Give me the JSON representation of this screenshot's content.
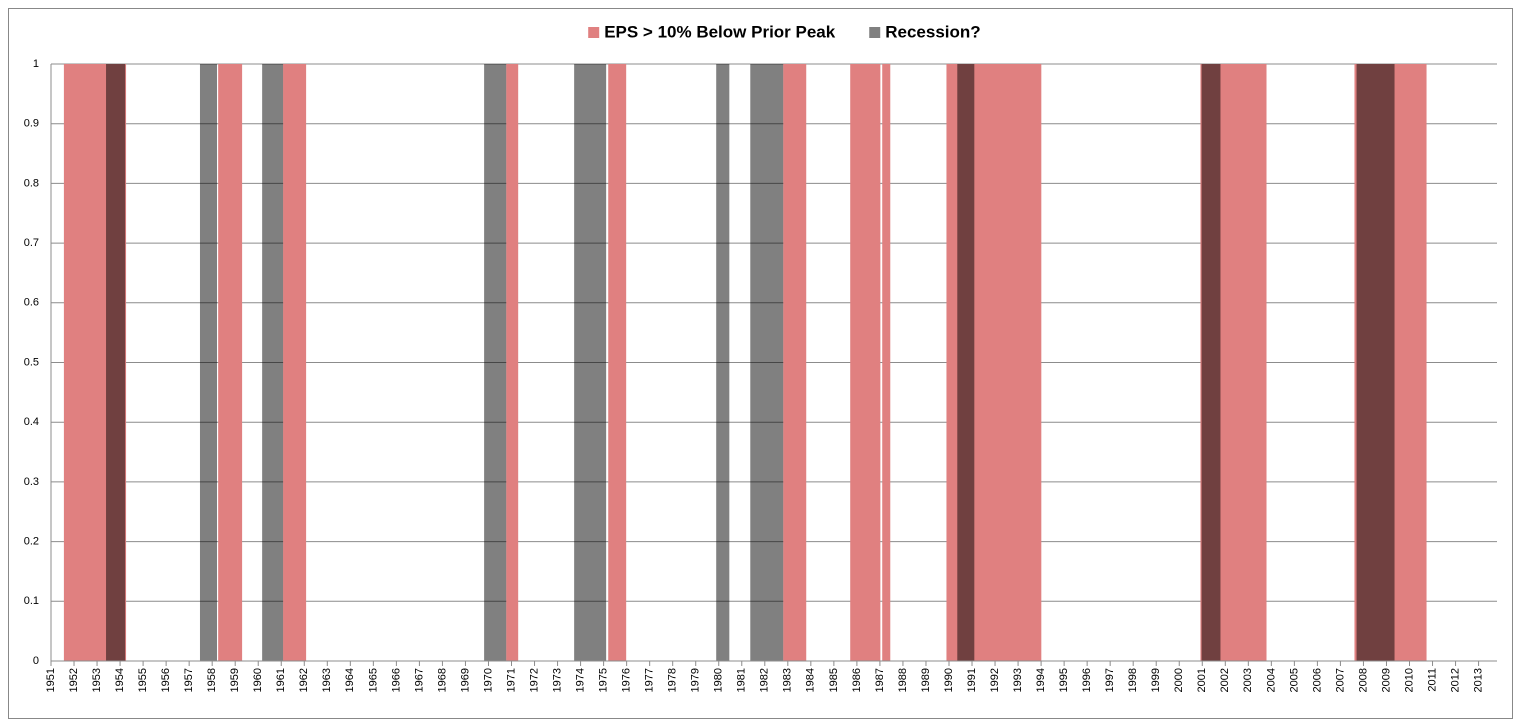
{
  "chart_data": {
    "type": "span",
    "xlim": [
      1951,
      2013.8
    ],
    "xticks": [
      1951,
      1952,
      1953,
      1954,
      1955,
      1956,
      1957,
      1958,
      1959,
      1960,
      1961,
      1962,
      1963,
      1964,
      1965,
      1966,
      1967,
      1968,
      1969,
      1970,
      1971,
      1972,
      1973,
      1974,
      1975,
      1976,
      1977,
      1978,
      1979,
      1980,
      1981,
      1982,
      1983,
      1984,
      1985,
      1986,
      1987,
      1988,
      1989,
      1990,
      1991,
      1992,
      1993,
      1994,
      1995,
      1996,
      1997,
      1998,
      1999,
      2000,
      2001,
      2002,
      2003,
      2004,
      2005,
      2006,
      2007,
      2008,
      2009,
      2010,
      2011,
      2012,
      2013
    ],
    "ylim": [
      0,
      1
    ],
    "yticks": [
      0,
      0.1,
      0.2,
      0.3,
      0.4,
      0.5,
      0.6,
      0.7,
      0.8,
      0.9,
      1
    ],
    "grid": true,
    "legend": "top",
    "series": [
      {
        "name": "EPS > 10% Below Prior Peak",
        "color": "#e08080",
        "blend": "normal",
        "starts": [
          1951.56,
          1958.26,
          1961.08,
          1970.77,
          1975.2,
          1982.8,
          1985.71,
          1987.1,
          1989.89,
          2000.92,
          2007.61
        ],
        "ends": [
          1954.26,
          1959.3,
          1962.08,
          1971.29,
          1975.98,
          1983.8,
          1987.02,
          1987.45,
          1994.01,
          2003.79,
          2010.74
        ],
        "values": [
          1,
          1,
          1,
          1,
          1,
          1,
          1,
          1,
          1,
          1,
          1
        ]
      },
      {
        "name": "Recession?",
        "color": "#808080",
        "blend": "multiply",
        "starts": [
          1953.39,
          1957.47,
          1960.17,
          1969.81,
          1973.72,
          1979.89,
          1981.37,
          1990.36,
          2000.97,
          2007.7
        ],
        "ends": [
          1954.22,
          1958.21,
          1961.08,
          1970.77,
          1975.11,
          1980.46,
          1982.8,
          1991.1,
          2001.79,
          2009.35
        ],
        "values": [
          1,
          1,
          1,
          1,
          1,
          1,
          1,
          1,
          1,
          1
        ]
      }
    ]
  }
}
